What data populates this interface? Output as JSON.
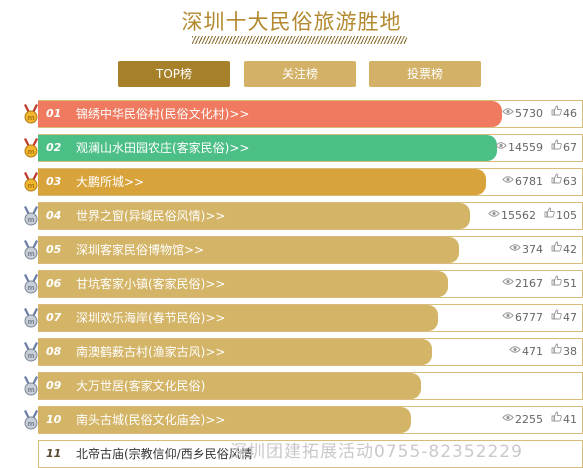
{
  "page": {
    "title": "深圳十大民俗旅游胜地"
  },
  "tabs": [
    {
      "label": "TOP榜",
      "active": true
    },
    {
      "label": "关注榜",
      "active": false
    },
    {
      "label": "投票榜",
      "active": false
    }
  ],
  "colors": {
    "accent": "#a7812a",
    "tab": "#d3b166",
    "rank1": "#f07a60",
    "rank2": "#4cbf86",
    "rank3": "#d8a33a",
    "rankRest": "#d4b466"
  },
  "ranking": [
    {
      "rank": "01",
      "name": "锦绣中华民俗村(民俗文化村)>>",
      "views": "5730",
      "likes": "46",
      "medal": "gold-medal-icon",
      "fill": 0.86
    },
    {
      "rank": "02",
      "name": "观澜山水田园农庄(客家民俗)>>",
      "views": "14559",
      "likes": "67",
      "medal": "gold-medal-icon",
      "fill": 0.85
    },
    {
      "rank": "03",
      "name": "大鹏所城>>",
      "views": "6781",
      "likes": "63",
      "medal": "gold-medal-icon",
      "fill": 0.83
    },
    {
      "rank": "04",
      "name": "世界之窗(异域民俗风情)>>",
      "views": "15562",
      "likes": "105",
      "medal": "silver-medal-icon",
      "fill": 0.8
    },
    {
      "rank": "05",
      "name": "深圳客家民俗博物馆>>",
      "views": "374",
      "likes": "42",
      "medal": "silver-medal-icon",
      "fill": 0.78
    },
    {
      "rank": "06",
      "name": "甘坑客家小镇(客家民俗)>>",
      "views": "2167",
      "likes": "51",
      "medal": "silver-medal-icon",
      "fill": 0.76
    },
    {
      "rank": "07",
      "name": "深圳欢乐海岸(春节民俗)>>",
      "views": "6777",
      "likes": "47",
      "medal": "silver-medal-icon",
      "fill": 0.74
    },
    {
      "rank": "08",
      "name": "南澳鹤薮古村(渔家古风)>>",
      "views": "471",
      "likes": "38",
      "medal": "silver-medal-icon",
      "fill": 0.73
    },
    {
      "rank": "09",
      "name": "大万世居(客家文化民俗)",
      "views": "",
      "likes": "",
      "medal": "silver-medal-icon",
      "fill": 0.71
    },
    {
      "rank": "10",
      "name": "南头古城(民俗文化庙会)>>",
      "views": "2255",
      "likes": "41",
      "medal": "silver-medal-icon",
      "fill": 0.69
    },
    {
      "rank": "11",
      "name": "北帝古庙(宗教信仰/西乡民俗风情",
      "views": "",
      "likes": "",
      "medal": "",
      "fill": 0.0
    }
  ],
  "watermark": "深圳团建拓展活动0755-82352229"
}
